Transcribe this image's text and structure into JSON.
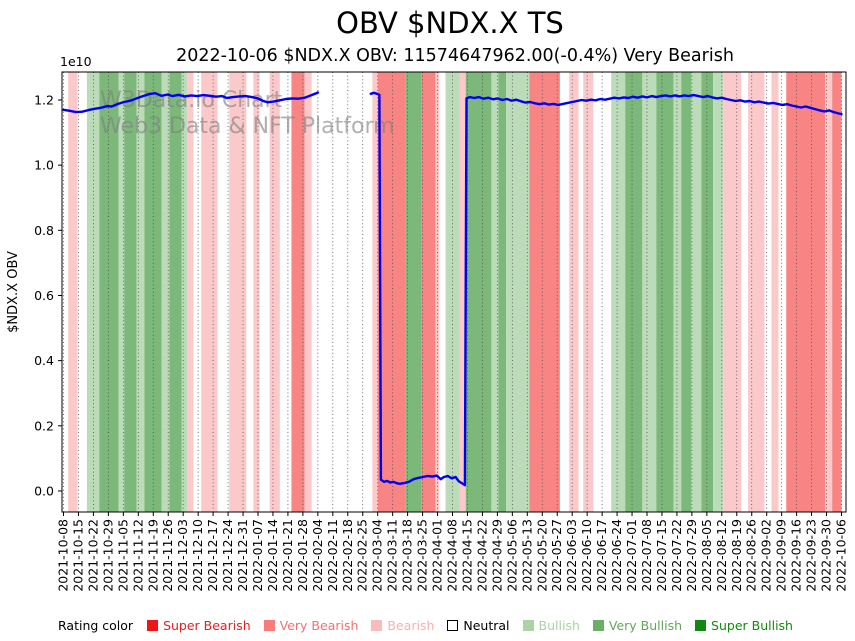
{
  "title": "OBV $NDX.X TS",
  "subtitle": "2022-10-06 $NDX.X OBV: 11574647962.00(-0.4%) Very Bearish",
  "watermark": {
    "line1": "W3Data.io Chart",
    "line2": "Web3 Data & NFT Platform",
    "color": "rgba(128,128,128,0.62)"
  },
  "legend": {
    "label": "Rating color",
    "items": [
      {
        "label": "Super Bearish",
        "swatch": "#ed1515",
        "text_color": "#e32020",
        "outlined": false
      },
      {
        "label": "Very Bearish",
        "swatch": "#f87c7c",
        "text_color": "#f47070",
        "outlined": false
      },
      {
        "label": "Bearish",
        "swatch": "#f9bcbc",
        "text_color": "#f6b0b0",
        "outlined": false
      },
      {
        "label": "Neutral",
        "swatch": "#ffffff",
        "text_color": "#000000",
        "outlined": true
      },
      {
        "label": "Bullish",
        "swatch": "#aad4a4",
        "text_color": "#a8d3a2",
        "outlined": false
      },
      {
        "label": "Very Bullish",
        "swatch": "#6cae66",
        "text_color": "#61a65b",
        "outlined": false
      },
      {
        "label": "Super Bullish",
        "swatch": "#118811",
        "text_color": "#0d8c0d",
        "outlined": false
      }
    ]
  },
  "chart_data": {
    "type": "line",
    "title": "OBV $NDX.X TS",
    "xlabel": "",
    "ylabel": "$NDX.X OBV",
    "y_offset_label": "1e10",
    "grid": "vertical-dotted",
    "legend_position": "bottom",
    "y_ticks": [
      0.0,
      0.2,
      0.4,
      0.6,
      0.8,
      1.0,
      1.2
    ],
    "ylim": [
      -0.073,
      1.286
    ],
    "line_color": "#0000ee",
    "x_tick_labels": [
      "2021-10-08",
      "2021-10-15",
      "2021-10-22",
      "2021-10-29",
      "2021-11-05",
      "2021-11-12",
      "2021-11-19",
      "2021-11-26",
      "2021-12-03",
      "2021-12-10",
      "2021-12-17",
      "2021-12-24",
      "2021-12-31",
      "2022-01-07",
      "2022-01-14",
      "2022-01-21",
      "2022-01-28",
      "2022-02-04",
      "2022-02-11",
      "2022-02-18",
      "2022-02-25",
      "2022-03-04",
      "2022-03-11",
      "2022-03-18",
      "2022-03-25",
      "2022-04-01",
      "2022-04-08",
      "2022-04-15",
      "2022-04-22",
      "2022-04-29",
      "2022-05-06",
      "2022-05-13",
      "2022-05-20",
      "2022-05-27",
      "2022-06-03",
      "2022-06-10",
      "2022-06-17",
      "2022-06-24",
      "2022-07-01",
      "2022-07-08",
      "2022-07-15",
      "2022-07-22",
      "2022-07-29",
      "2022-08-05",
      "2022-08-12",
      "2022-08-19",
      "2022-08-26",
      "2022-09-02",
      "2022-09-09",
      "2022-09-16",
      "2022-09-23",
      "2022-09-30",
      "2022-10-06"
    ],
    "band_colors": {
      "very_bearish": "#f88484",
      "bearish": "#fbc9c9",
      "neutral": "#ffffff",
      "bullish": "#bcdbb8",
      "very_bullish": "#7cb87a"
    },
    "rating_bands": [
      {
        "x0": 0.006,
        "x1": 0.018,
        "rating": "bearish"
      },
      {
        "x0": 0.03,
        "x1": 0.046,
        "rating": "bullish"
      },
      {
        "x0": 0.046,
        "x1": 0.071,
        "rating": "very_bullish"
      },
      {
        "x0": 0.071,
        "x1": 0.078,
        "rating": "bullish"
      },
      {
        "x0": 0.078,
        "x1": 0.094,
        "rating": "very_bullish"
      },
      {
        "x0": 0.094,
        "x1": 0.104,
        "rating": "bullish"
      },
      {
        "x0": 0.104,
        "x1": 0.126,
        "rating": "very_bullish"
      },
      {
        "x0": 0.126,
        "x1": 0.136,
        "rating": "bullish"
      },
      {
        "x0": 0.136,
        "x1": 0.152,
        "rating": "very_bullish"
      },
      {
        "x0": 0.152,
        "x1": 0.159,
        "rating": "bullish"
      },
      {
        "x0": 0.159,
        "x1": 0.167,
        "rating": "bearish"
      },
      {
        "x0": 0.177,
        "x1": 0.198,
        "rating": "bearish"
      },
      {
        "x0": 0.213,
        "x1": 0.235,
        "rating": "bearish"
      },
      {
        "x0": 0.244,
        "x1": 0.252,
        "rating": "bearish"
      },
      {
        "x0": 0.265,
        "x1": 0.278,
        "rating": "bearish"
      },
      {
        "x0": 0.293,
        "x1": 0.31,
        "rating": "very_bearish"
      },
      {
        "x0": 0.31,
        "x1": 0.319,
        "rating": "bearish"
      },
      {
        "x0": 0.397,
        "x1": 0.404,
        "rating": "bearish"
      },
      {
        "x0": 0.404,
        "x1": 0.44,
        "rating": "very_bearish"
      },
      {
        "x0": 0.44,
        "x1": 0.46,
        "rating": "very_bullish"
      },
      {
        "x0": 0.46,
        "x1": 0.478,
        "rating": "very_bearish"
      },
      {
        "x0": 0.478,
        "x1": 0.483,
        "rating": "bearish"
      },
      {
        "x0": 0.491,
        "x1": 0.509,
        "rating": "bullish"
      },
      {
        "x0": 0.509,
        "x1": 0.517,
        "rating": "bearish"
      },
      {
        "x0": 0.517,
        "x1": 0.55,
        "rating": "very_bullish"
      },
      {
        "x0": 0.55,
        "x1": 0.559,
        "rating": "bullish"
      },
      {
        "x0": 0.559,
        "x1": 0.569,
        "rating": "very_bullish"
      },
      {
        "x0": 0.569,
        "x1": 0.599,
        "rating": "bullish"
      },
      {
        "x0": 0.599,
        "x1": 0.638,
        "rating": "very_bearish"
      },
      {
        "x0": 0.65,
        "x1": 0.662,
        "rating": "bearish"
      },
      {
        "x0": 0.668,
        "x1": 0.681,
        "rating": "bearish"
      },
      {
        "x0": 0.704,
        "x1": 0.722,
        "rating": "bullish"
      },
      {
        "x0": 0.722,
        "x1": 0.744,
        "rating": "very_bullish"
      },
      {
        "x0": 0.744,
        "x1": 0.762,
        "rating": "bullish"
      },
      {
        "x0": 0.762,
        "x1": 0.784,
        "rating": "very_bullish"
      },
      {
        "x0": 0.784,
        "x1": 0.794,
        "rating": "bullish"
      },
      {
        "x0": 0.794,
        "x1": 0.807,
        "rating": "very_bullish"
      },
      {
        "x0": 0.807,
        "x1": 0.82,
        "rating": "bullish"
      },
      {
        "x0": 0.82,
        "x1": 0.835,
        "rating": "very_bullish"
      },
      {
        "x0": 0.835,
        "x1": 0.848,
        "rating": "bullish"
      },
      {
        "x0": 0.848,
        "x1": 0.871,
        "rating": "bearish"
      },
      {
        "x0": 0.88,
        "x1": 0.901,
        "rating": "bearish"
      },
      {
        "x0": 0.91,
        "x1": 0.919,
        "rating": "bearish"
      },
      {
        "x0": 0.929,
        "x1": 0.979,
        "rating": "very_bearish"
      },
      {
        "x0": 0.979,
        "x1": 0.988,
        "rating": "bearish"
      },
      {
        "x0": 0.988,
        "x1": 1.0,
        "rating": "very_bearish"
      }
    ],
    "series": [
      {
        "name": "$NDX.X OBV",
        "unit": "1e10",
        "segments": [
          [
            [
              0.0,
              1.17
            ],
            [
              0.008,
              1.167
            ],
            [
              0.016,
              1.163
            ],
            [
              0.024,
              1.164
            ],
            [
              0.032,
              1.169
            ],
            [
              0.04,
              1.173
            ],
            [
              0.048,
              1.176
            ],
            [
              0.056,
              1.181
            ],
            [
              0.062,
              1.18
            ],
            [
              0.07,
              1.188
            ],
            [
              0.078,
              1.194
            ],
            [
              0.086,
              1.198
            ],
            [
              0.094,
              1.205
            ],
            [
              0.102,
              1.212
            ],
            [
              0.11,
              1.218
            ],
            [
              0.118,
              1.221
            ],
            [
              0.126,
              1.213
            ],
            [
              0.134,
              1.217
            ],
            [
              0.14,
              1.212
            ],
            [
              0.148,
              1.216
            ],
            [
              0.156,
              1.211
            ],
            [
              0.164,
              1.214
            ],
            [
              0.172,
              1.212
            ],
            [
              0.18,
              1.215
            ],
            [
              0.188,
              1.213
            ],
            [
              0.196,
              1.21
            ],
            [
              0.204,
              1.212
            ],
            [
              0.21,
              1.206
            ],
            [
              0.218,
              1.209
            ],
            [
              0.226,
              1.211
            ],
            [
              0.234,
              1.212
            ],
            [
              0.242,
              1.209
            ],
            [
              0.25,
              1.205
            ],
            [
              0.256,
              1.198
            ],
            [
              0.262,
              1.193
            ],
            [
              0.27,
              1.195
            ],
            [
              0.278,
              1.199
            ],
            [
              0.286,
              1.203
            ],
            [
              0.294,
              1.205
            ],
            [
              0.302,
              1.204
            ],
            [
              0.31,
              1.207
            ],
            [
              0.318,
              1.214
            ],
            [
              0.324,
              1.22
            ],
            [
              0.327,
              1.223
            ]
          ],
          [
            [
              0.395,
              1.219
            ],
            [
              0.399,
              1.222
            ],
            [
              0.403,
              1.219
            ],
            [
              0.406,
              1.216
            ],
            [
              0.408,
              0.035
            ],
            [
              0.412,
              0.028
            ],
            [
              0.416,
              0.031
            ],
            [
              0.42,
              0.026
            ],
            [
              0.424,
              0.028
            ],
            [
              0.428,
              0.024
            ],
            [
              0.432,
              0.022
            ],
            [
              0.438,
              0.024
            ],
            [
              0.444,
              0.028
            ],
            [
              0.45,
              0.036
            ],
            [
              0.456,
              0.04
            ],
            [
              0.462,
              0.043
            ],
            [
              0.468,
              0.046
            ],
            [
              0.474,
              0.044
            ],
            [
              0.48,
              0.047
            ],
            [
              0.485,
              0.036
            ],
            [
              0.489,
              0.043
            ],
            [
              0.494,
              0.046
            ],
            [
              0.499,
              0.039
            ],
            [
              0.504,
              0.043
            ],
            [
              0.508,
              0.03
            ],
            [
              0.512,
              0.024
            ],
            [
              0.516,
              0.018
            ],
            [
              0.518,
              1.205
            ],
            [
              0.522,
              1.209
            ],
            [
              0.528,
              1.206
            ],
            [
              0.534,
              1.209
            ],
            [
              0.54,
              1.204
            ],
            [
              0.546,
              1.207
            ],
            [
              0.552,
              1.202
            ],
            [
              0.558,
              1.205
            ],
            [
              0.564,
              1.2
            ],
            [
              0.57,
              1.203
            ],
            [
              0.576,
              1.198
            ],
            [
              0.582,
              1.201
            ],
            [
              0.588,
              1.196
            ],
            [
              0.594,
              1.192
            ],
            [
              0.6,
              1.194
            ],
            [
              0.606,
              1.19
            ],
            [
              0.612,
              1.187
            ],
            [
              0.618,
              1.19
            ],
            [
              0.624,
              1.186
            ],
            [
              0.63,
              1.188
            ],
            [
              0.636,
              1.185
            ],
            [
              0.642,
              1.188
            ],
            [
              0.648,
              1.191
            ],
            [
              0.654,
              1.194
            ],
            [
              0.66,
              1.197
            ],
            [
              0.666,
              1.2
            ],
            [
              0.672,
              1.198
            ],
            [
              0.678,
              1.201
            ],
            [
              0.684,
              1.199
            ],
            [
              0.69,
              1.203
            ],
            [
              0.696,
              1.201
            ],
            [
              0.702,
              1.204
            ],
            [
              0.708,
              1.207
            ],
            [
              0.714,
              1.205
            ],
            [
              0.72,
              1.208
            ],
            [
              0.726,
              1.206
            ],
            [
              0.732,
              1.21
            ],
            [
              0.738,
              1.207
            ],
            [
              0.744,
              1.211
            ],
            [
              0.75,
              1.208
            ],
            [
              0.756,
              1.212
            ],
            [
              0.762,
              1.209
            ],
            [
              0.768,
              1.212
            ],
            [
              0.774,
              1.214
            ],
            [
              0.78,
              1.211
            ],
            [
              0.786,
              1.214
            ],
            [
              0.792,
              1.211
            ],
            [
              0.798,
              1.214
            ],
            [
              0.804,
              1.212
            ],
            [
              0.81,
              1.215
            ],
            [
              0.816,
              1.212
            ],
            [
              0.822,
              1.209
            ],
            [
              0.828,
              1.212
            ],
            [
              0.834,
              1.208
            ],
            [
              0.84,
              1.205
            ],
            [
              0.846,
              1.207
            ],
            [
              0.852,
              1.203
            ],
            [
              0.858,
              1.2
            ],
            [
              0.864,
              1.197
            ],
            [
              0.87,
              1.199
            ],
            [
              0.876,
              1.195
            ],
            [
              0.882,
              1.197
            ],
            [
              0.888,
              1.193
            ],
            [
              0.894,
              1.195
            ],
            [
              0.9,
              1.192
            ],
            [
              0.906,
              1.189
            ],
            [
              0.912,
              1.191
            ],
            [
              0.918,
              1.188
            ],
            [
              0.924,
              1.185
            ],
            [
              0.93,
              1.187
            ],
            [
              0.936,
              1.183
            ],
            [
              0.942,
              1.18
            ],
            [
              0.948,
              1.177
            ],
            [
              0.954,
              1.18
            ],
            [
              0.96,
              1.176
            ],
            [
              0.966,
              1.172
            ],
            [
              0.972,
              1.168
            ],
            [
              0.978,
              1.165
            ],
            [
              0.984,
              1.168
            ],
            [
              0.99,
              1.163
            ],
            [
              0.996,
              1.159
            ],
            [
              1.0,
              1.157
            ]
          ]
        ]
      }
    ]
  }
}
